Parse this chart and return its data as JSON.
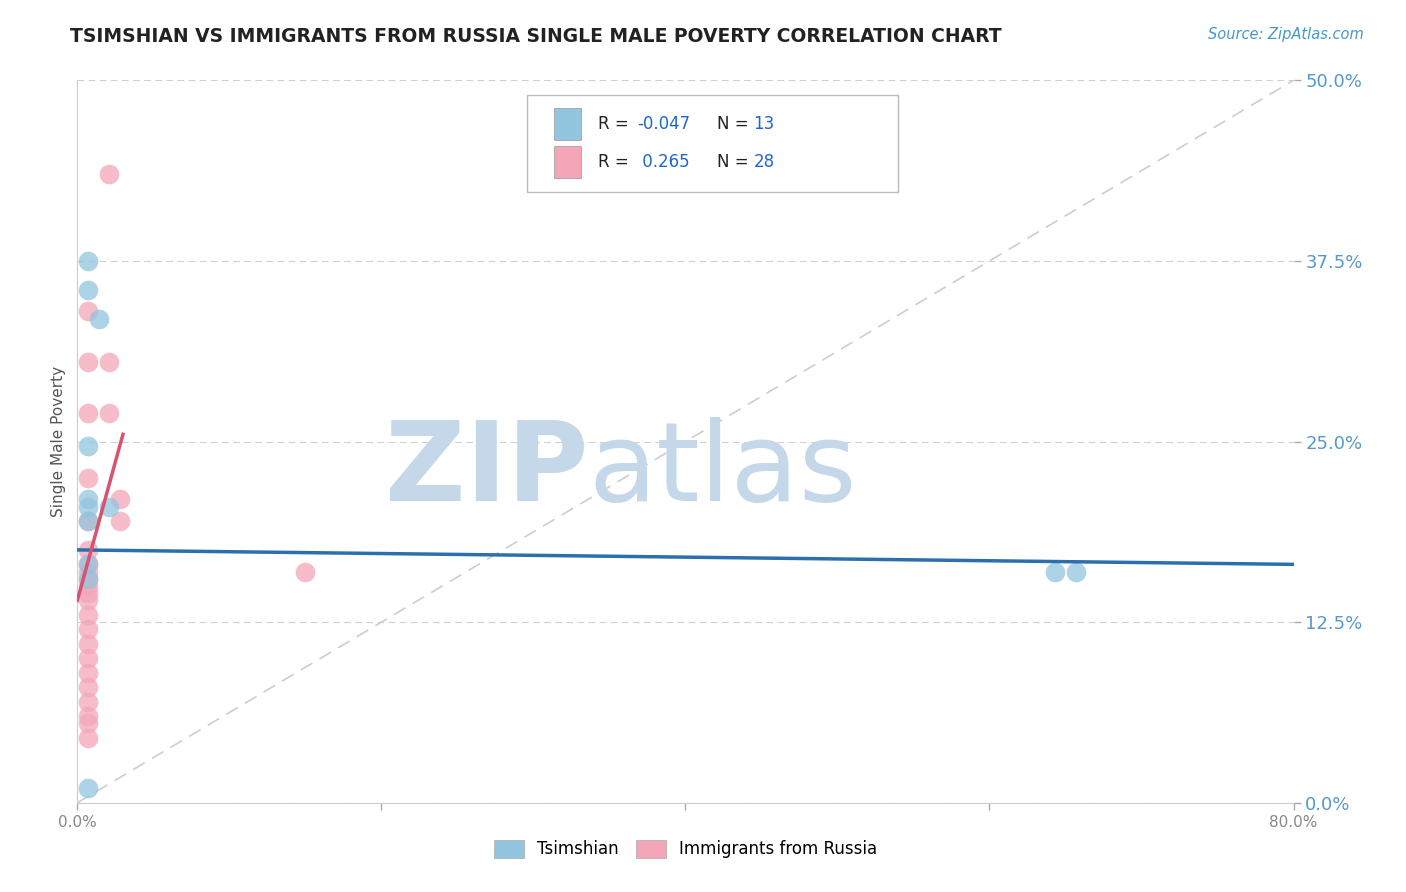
{
  "title": "TSIMSHIAN VS IMMIGRANTS FROM RUSSIA SINGLE MALE POVERTY CORRELATION CHART",
  "source": "Source: ZipAtlas.com",
  "ylabel": "Single Male Poverty",
  "R1": "-0.047",
  "N1": "13",
  "R2": "0.265",
  "N2": "28",
  "blue_scatter_color": "#92c5de",
  "pink_scatter_color": "#f4a6b8",
  "blue_line_color": "#2c6fad",
  "pink_line_color": "#d9526e",
  "diag_line_color": "#c8c8c8",
  "watermark_zip_color": "#c5d8ea",
  "watermark_atlas_color": "#c5d8ea",
  "background_color": "#ffffff",
  "grid_color": "#d0d0d0",
  "title_color": "#222222",
  "source_color": "#4499cc",
  "ytick_color": "#5599cc",
  "xtick_color": "#888888",
  "legend_text_color": "#222222",
  "legend_num_color": "#2266cc",
  "xlim": [
    0.0,
    0.8
  ],
  "ylim": [
    0.0,
    0.5
  ],
  "ytick_vals": [
    0.0,
    0.125,
    0.25,
    0.375,
    0.5
  ],
  "ytick_labels": [
    "0.0%",
    "12.5%",
    "25.0%",
    "37.5%",
    "50.0%"
  ],
  "xtick_vals": [
    0.0,
    0.2,
    0.4,
    0.6,
    0.8
  ],
  "xtick_labels": [
    "0.0%",
    "",
    "",
    "",
    "80.0%"
  ],
  "blue_x": [
    0.007,
    0.007,
    0.014,
    0.007,
    0.007,
    0.007,
    0.007,
    0.007,
    0.007,
    0.021,
    0.643,
    0.657,
    0.007
  ],
  "blue_y": [
    0.375,
    0.355,
    0.335,
    0.247,
    0.21,
    0.205,
    0.195,
    0.165,
    0.155,
    0.205,
    0.16,
    0.16,
    0.01
  ],
  "pink_x": [
    0.021,
    0.021,
    0.021,
    0.028,
    0.028,
    0.007,
    0.007,
    0.007,
    0.007,
    0.007,
    0.007,
    0.007,
    0.007,
    0.007,
    0.007,
    0.007,
    0.007,
    0.007,
    0.007,
    0.007,
    0.007,
    0.15,
    0.007,
    0.007,
    0.007,
    0.007,
    0.007,
    0.007
  ],
  "pink_y": [
    0.435,
    0.305,
    0.27,
    0.21,
    0.195,
    0.34,
    0.305,
    0.27,
    0.225,
    0.195,
    0.175,
    0.165,
    0.16,
    0.155,
    0.15,
    0.145,
    0.14,
    0.13,
    0.12,
    0.11,
    0.1,
    0.16,
    0.09,
    0.08,
    0.07,
    0.06,
    0.055,
    0.045
  ],
  "blue_line_x": [
    0.0,
    0.8
  ],
  "blue_line_y": [
    0.175,
    0.165
  ],
  "pink_line_x": [
    0.0,
    0.03
  ],
  "pink_line_y": [
    0.14,
    0.255
  ],
  "diag_line_x": [
    0.0,
    0.8
  ],
  "diag_line_y": [
    0.0,
    0.5
  ]
}
